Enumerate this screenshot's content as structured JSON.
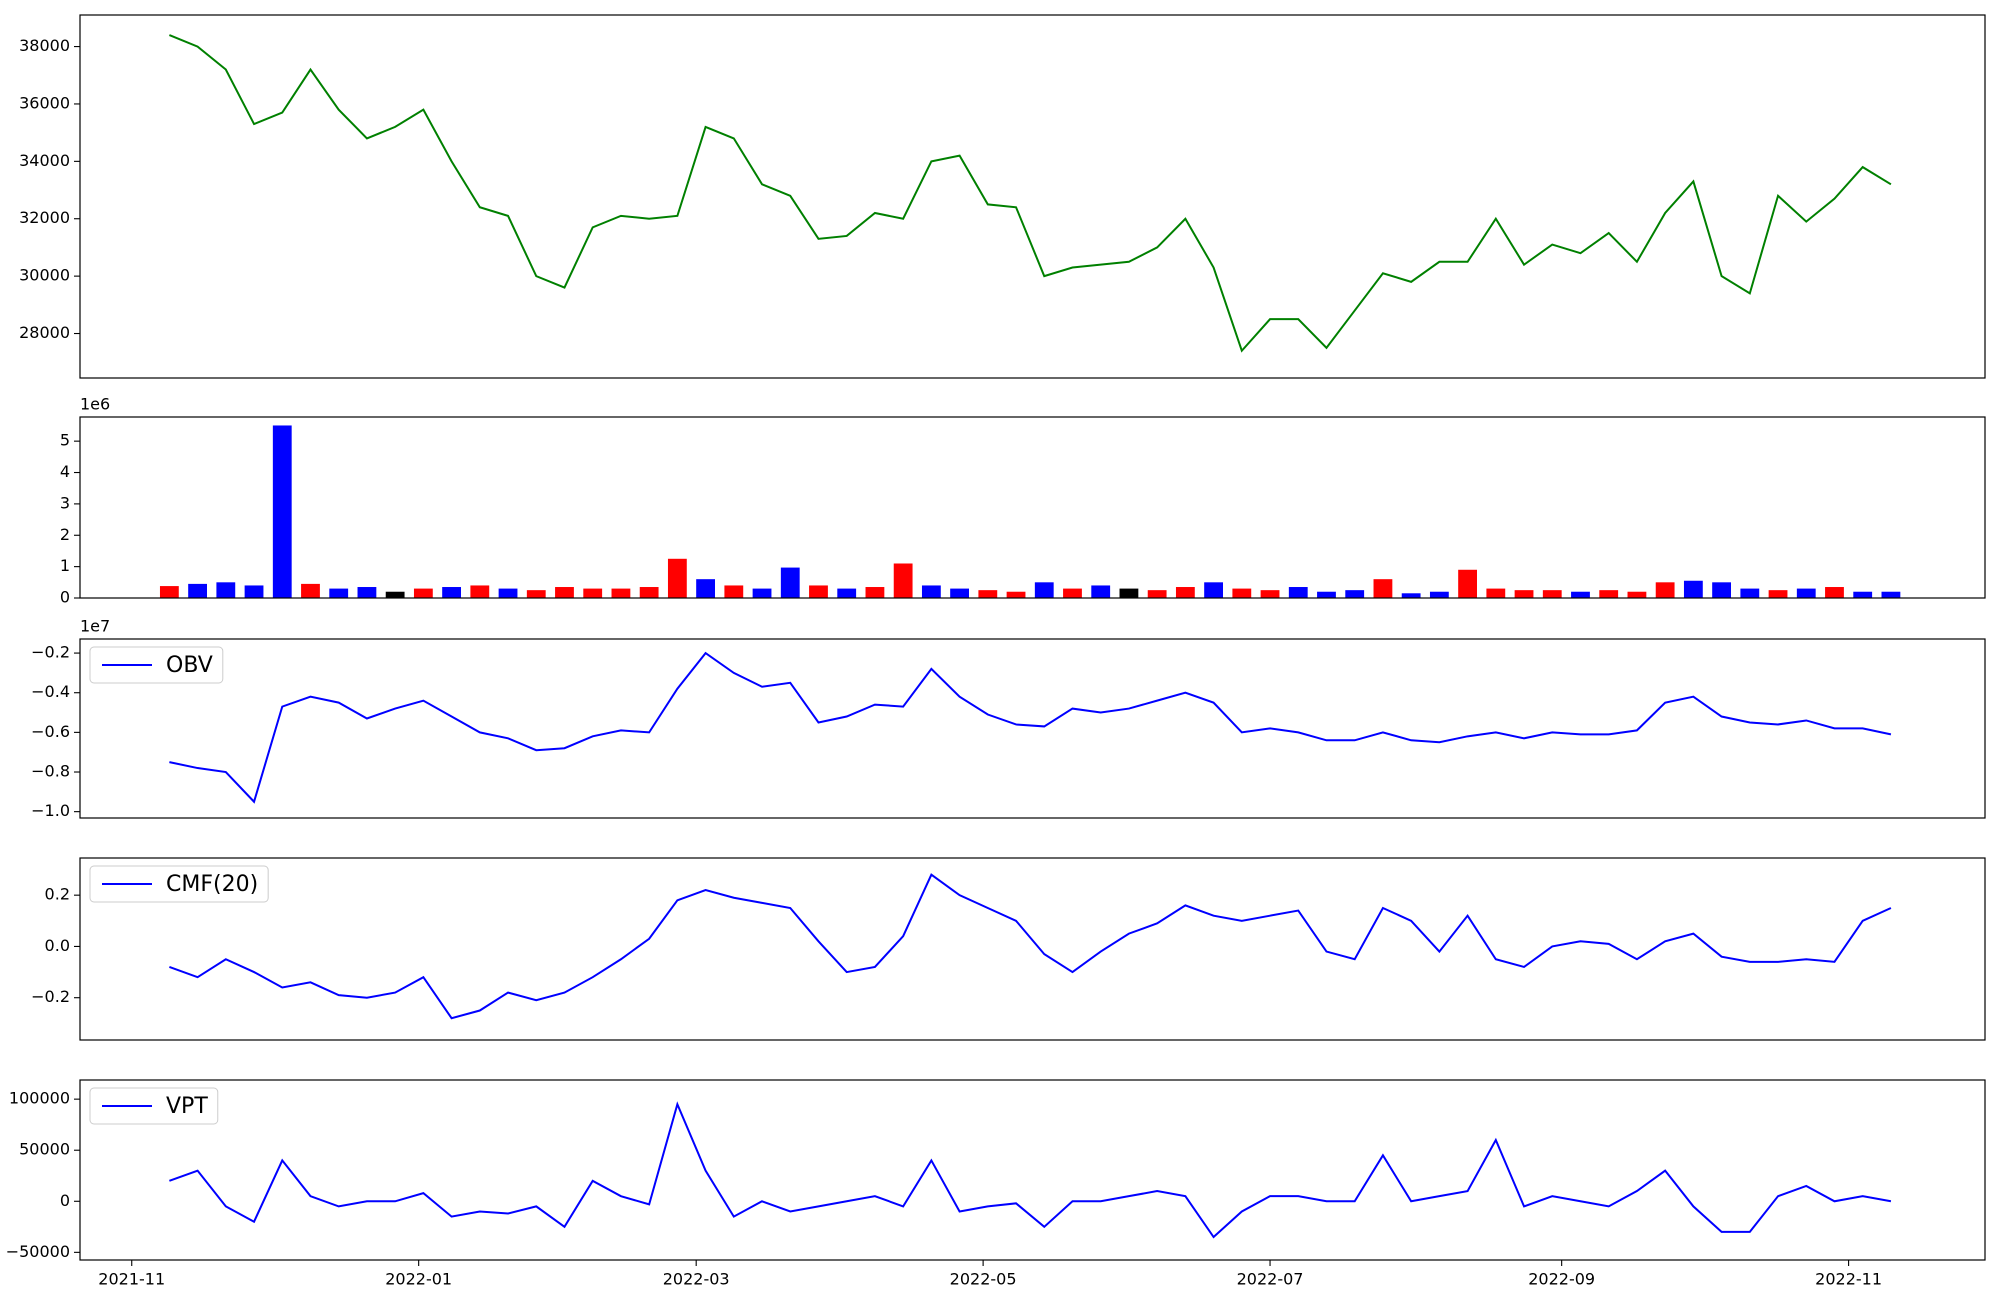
{
  "chart_data": [
    {
      "type": "line",
      "x": [
        18940,
        18946,
        18952,
        18958,
        18964,
        18970,
        18976,
        18982,
        18988,
        18994,
        19000,
        19006,
        19012,
        19018,
        19024,
        19030,
        19036,
        19042,
        19048,
        19054,
        19060,
        19066,
        19072,
        19078,
        19084,
        19090,
        19096,
        19102,
        19108,
        19114,
        19120,
        19126,
        19132,
        19138,
        19144,
        19150,
        19156,
        19162,
        19168,
        19174,
        19180,
        19186,
        19192,
        19198,
        19204,
        19210,
        19216,
        19222,
        19228,
        19234,
        19240,
        19246,
        19252,
        19258,
        19264,
        19270,
        19276,
        19282,
        19288,
        19294,
        19300,
        19306
      ],
      "series": [
        {
          "color": "#008000",
          "values": [
            38400,
            38000,
            37200,
            35300,
            35700,
            37200,
            35800,
            34800,
            35200,
            35800,
            34000,
            32400,
            32100,
            30000,
            29600,
            31700,
            32100,
            32000,
            32100,
            35200,
            34800,
            33200,
            32800,
            31300,
            31400,
            32200,
            32000,
            34000,
            34200,
            32500,
            32400,
            30000,
            30300,
            30400,
            30500,
            31000,
            32000,
            30300,
            27400,
            28500,
            28500,
            27500,
            28800,
            30100,
            29800,
            30500,
            30500,
            32000,
            30400,
            31100,
            30800,
            31500,
            30500,
            32200,
            33300,
            30000,
            29400,
            32800,
            31900,
            32700,
            33800,
            33200
          ]
        }
      ],
      "xlim": [
        18921,
        19326
      ],
      "ylim": [
        26450,
        39100
      ],
      "yticks": [
        28000,
        30000,
        32000,
        34000,
        36000,
        38000
      ]
    },
    {
      "type": "bar",
      "x": [
        18940,
        18946,
        18952,
        18958,
        18964,
        18970,
        18976,
        18982,
        18988,
        18994,
        19000,
        19006,
        19012,
        19018,
        19024,
        19030,
        19036,
        19042,
        19048,
        19054,
        19060,
        19066,
        19072,
        19078,
        19084,
        19090,
        19096,
        19102,
        19108,
        19114,
        19120,
        19126,
        19132,
        19138,
        19144,
        19150,
        19156,
        19162,
        19168,
        19174,
        19180,
        19186,
        19192,
        19198,
        19204,
        19210,
        19216,
        19222,
        19228,
        19234,
        19240,
        19246,
        19252,
        19258,
        19264,
        19270,
        19276,
        19282,
        19288,
        19294,
        19300,
        19306
      ],
      "values": [
        380000,
        450000,
        500000,
        400000,
        5500000,
        450000,
        300000,
        350000,
        200000,
        300000,
        350000,
        400000,
        300000,
        250000,
        350000,
        300000,
        300000,
        350000,
        1250000,
        600000,
        400000,
        300000,
        970000,
        400000,
        300000,
        350000,
        1100000,
        400000,
        300000,
        250000,
        200000,
        500000,
        300000,
        400000,
        300000,
        250000,
        350000,
        500000,
        300000,
        250000,
        350000,
        200000,
        250000,
        600000,
        150000,
        200000,
        900000,
        300000,
        250000,
        250000,
        200000,
        250000,
        200000,
        500000,
        550000,
        500000,
        300000,
        250000,
        300000,
        350000,
        200000,
        200000
      ],
      "colors": [
        "#ff0000",
        "#0000ff",
        "#0000ff",
        "#0000ff",
        "#0000ff",
        "#ff0000",
        "#0000ff",
        "#0000ff",
        "#000000",
        "#ff0000",
        "#0000ff",
        "#ff0000",
        "#0000ff",
        "#ff0000",
        "#ff0000",
        "#ff0000",
        "#ff0000",
        "#ff0000",
        "#ff0000",
        "#0000ff",
        "#ff0000",
        "#0000ff",
        "#0000ff",
        "#ff0000",
        "#0000ff",
        "#ff0000",
        "#ff0000",
        "#0000ff",
        "#0000ff",
        "#ff0000",
        "#ff0000",
        "#0000ff",
        "#ff0000",
        "#0000ff",
        "#000000",
        "#ff0000",
        "#ff0000",
        "#0000ff",
        "#ff0000",
        "#ff0000",
        "#0000ff",
        "#0000ff",
        "#0000ff",
        "#ff0000",
        "#0000ff",
        "#0000ff",
        "#ff0000",
        "#ff0000",
        "#ff0000",
        "#ff0000",
        "#0000ff",
        "#ff0000",
        "#ff0000",
        "#ff0000",
        "#0000ff",
        "#0000ff",
        "#0000ff",
        "#ff0000",
        "#0000ff",
        "#ff0000",
        "#0000ff",
        "#0000ff"
      ],
      "xlim": [
        18921,
        19326
      ],
      "ylim": [
        0,
        5770000
      ],
      "offset_label": "1e6",
      "yticks": [
        0,
        {
          "value": 1000000,
          "label": "1"
        },
        {
          "value": 2000000,
          "label": "2"
        },
        {
          "value": 3000000,
          "label": "3"
        },
        {
          "value": 4000000,
          "label": "4"
        },
        {
          "value": 5000000,
          "label": "5"
        }
      ]
    },
    {
      "type": "line",
      "x": [
        18940,
        18946,
        18952,
        18958,
        18964,
        18970,
        18976,
        18982,
        18988,
        18994,
        19000,
        19006,
        19012,
        19018,
        19024,
        19030,
        19036,
        19042,
        19048,
        19054,
        19060,
        19066,
        19072,
        19078,
        19084,
        19090,
        19096,
        19102,
        19108,
        19114,
        19120,
        19126,
        19132,
        19138,
        19144,
        19150,
        19156,
        19162,
        19168,
        19174,
        19180,
        19186,
        19192,
        19198,
        19204,
        19210,
        19216,
        19222,
        19228,
        19234,
        19240,
        19246,
        19252,
        19258,
        19264,
        19270,
        19276,
        19282,
        19288,
        19294,
        19300,
        19306
      ],
      "series": [
        {
          "name": "OBV",
          "color": "#0000ff",
          "values": [
            -7500000,
            -7800000,
            -8000000,
            -9500000,
            -4700000,
            -4200000,
            -4500000,
            -5300000,
            -4800000,
            -4400000,
            -5200000,
            -6000000,
            -6300000,
            -6900000,
            -6800000,
            -6200000,
            -5900000,
            -6000000,
            -3800000,
            -2000000,
            -3000000,
            -3700000,
            -3500000,
            -5500000,
            -5200000,
            -4600000,
            -4700000,
            -2800000,
            -4200000,
            -5100000,
            -5600000,
            -5700000,
            -4800000,
            -5000000,
            -4800000,
            -4400000,
            -4000000,
            -4500000,
            -6000000,
            -5800000,
            -6000000,
            -6400000,
            -6400000,
            -6000000,
            -6400000,
            -6500000,
            -6200000,
            -6000000,
            -6300000,
            -6000000,
            -6100000,
            -6100000,
            -5900000,
            -4500000,
            -4200000,
            -5200000,
            -5500000,
            -5600000,
            -5400000,
            -5800000,
            -5800000,
            -6100000
          ]
        }
      ],
      "xlim": [
        18921,
        19326
      ],
      "ylim": [
        -10320000,
        -1290000
      ],
      "offset_label": "1e7",
      "legend": "upper left",
      "yticks": [
        {
          "value": -10000000,
          "label": "−1.0"
        },
        {
          "value": -8000000,
          "label": "−0.8"
        },
        {
          "value": -6000000,
          "label": "−0.6"
        },
        {
          "value": -4000000,
          "label": "−0.4"
        },
        {
          "value": -2000000,
          "label": "−0.2"
        }
      ]
    },
    {
      "type": "line",
      "x": [
        18940,
        18946,
        18952,
        18958,
        18964,
        18970,
        18976,
        18982,
        18988,
        18994,
        19000,
        19006,
        19012,
        19018,
        19024,
        19030,
        19036,
        19042,
        19048,
        19054,
        19060,
        19066,
        19072,
        19078,
        19084,
        19090,
        19096,
        19102,
        19108,
        19114,
        19120,
        19126,
        19132,
        19138,
        19144,
        19150,
        19156,
        19162,
        19168,
        19174,
        19180,
        19186,
        19192,
        19198,
        19204,
        19210,
        19216,
        19222,
        19228,
        19234,
        19240,
        19246,
        19252,
        19258,
        19264,
        19270,
        19276,
        19282,
        19288,
        19294,
        19300,
        19306
      ],
      "series": [
        {
          "name": "CMF(20)",
          "color": "#0000ff",
          "values": [
            -0.08,
            -0.12,
            -0.05,
            -0.1,
            -0.16,
            -0.14,
            -0.19,
            -0.2,
            -0.18,
            -0.12,
            -0.28,
            -0.25,
            -0.18,
            -0.21,
            -0.18,
            -0.12,
            -0.05,
            0.03,
            0.18,
            0.22,
            0.19,
            0.17,
            0.15,
            0.02,
            -0.1,
            -0.08,
            0.04,
            0.28,
            0.2,
            0.15,
            0.1,
            -0.03,
            -0.1,
            -0.02,
            0.05,
            0.09,
            0.16,
            0.12,
            0.1,
            0.12,
            0.14,
            -0.02,
            -0.05,
            0.15,
            0.1,
            -0.02,
            0.12,
            -0.05,
            -0.08,
            0,
            0.02,
            0.01,
            -0.05,
            0.02,
            0.05,
            -0.04,
            -0.06,
            -0.06,
            -0.05,
            -0.06,
            0.1,
            0.15
          ]
        }
      ],
      "xlim": [
        18921,
        19326
      ],
      "ylim": [
        -0.365,
        0.345
      ],
      "legend": "upper left",
      "yticks": [
        {
          "value": -0.2,
          "label": "−0.2"
        },
        {
          "value": 0,
          "label": "0.0"
        },
        0.2
      ]
    },
    {
      "type": "line",
      "x": [
        18940,
        18946,
        18952,
        18958,
        18964,
        18970,
        18976,
        18982,
        18988,
        18994,
        19000,
        19006,
        19012,
        19018,
        19024,
        19030,
        19036,
        19042,
        19048,
        19054,
        19060,
        19066,
        19072,
        19078,
        19084,
        19090,
        19096,
        19102,
        19108,
        19114,
        19120,
        19126,
        19132,
        19138,
        19144,
        19150,
        19156,
        19162,
        19168,
        19174,
        19180,
        19186,
        19192,
        19198,
        19204,
        19210,
        19216,
        19222,
        19228,
        19234,
        19240,
        19246,
        19252,
        19258,
        19264,
        19270,
        19276,
        19282,
        19288,
        19294,
        19300,
        19306
      ],
      "series": [
        {
          "name": "VPT",
          "color": "#0000ff",
          "values": [
            20000,
            30000,
            -5000,
            -20000,
            40000,
            5000,
            -5000,
            0,
            0,
            8000,
            -15000,
            -10000,
            -12000,
            -5000,
            -25000,
            20000,
            5000,
            -3000,
            95000,
            30000,
            -15000,
            0,
            -10000,
            -5000,
            0,
            5000,
            -5000,
            40000,
            -10000,
            -5000,
            -2000,
            -25000,
            0,
            0,
            5000,
            10000,
            5000,
            -35000,
            -10000,
            5000,
            5000,
            0,
            0,
            45000,
            0,
            5000,
            10000,
            60000,
            -5000,
            5000,
            0,
            -5000,
            10000,
            30000,
            -5000,
            -30000,
            -30000,
            5000,
            15000,
            0,
            5000,
            0
          ]
        }
      ],
      "xlim": [
        18921,
        19326
      ],
      "ylim": [
        -57500,
        118750
      ],
      "legend": "upper left",
      "yticks": [
        {
          "value": -50000,
          "label": "−50000"
        },
        0,
        50000,
        100000
      ],
      "xticks": [
        {
          "value": 18932,
          "label": "2021-11"
        },
        {
          "value": 18993,
          "label": "2022-01"
        },
        {
          "value": 19052,
          "label": "2022-03"
        },
        {
          "value": 19113,
          "label": "2022-05"
        },
        {
          "value": 19174,
          "label": "2022-07"
        },
        {
          "value": 19236,
          "label": "2022-09"
        },
        {
          "value": 19297,
          "label": "2022-11"
        }
      ]
    }
  ]
}
